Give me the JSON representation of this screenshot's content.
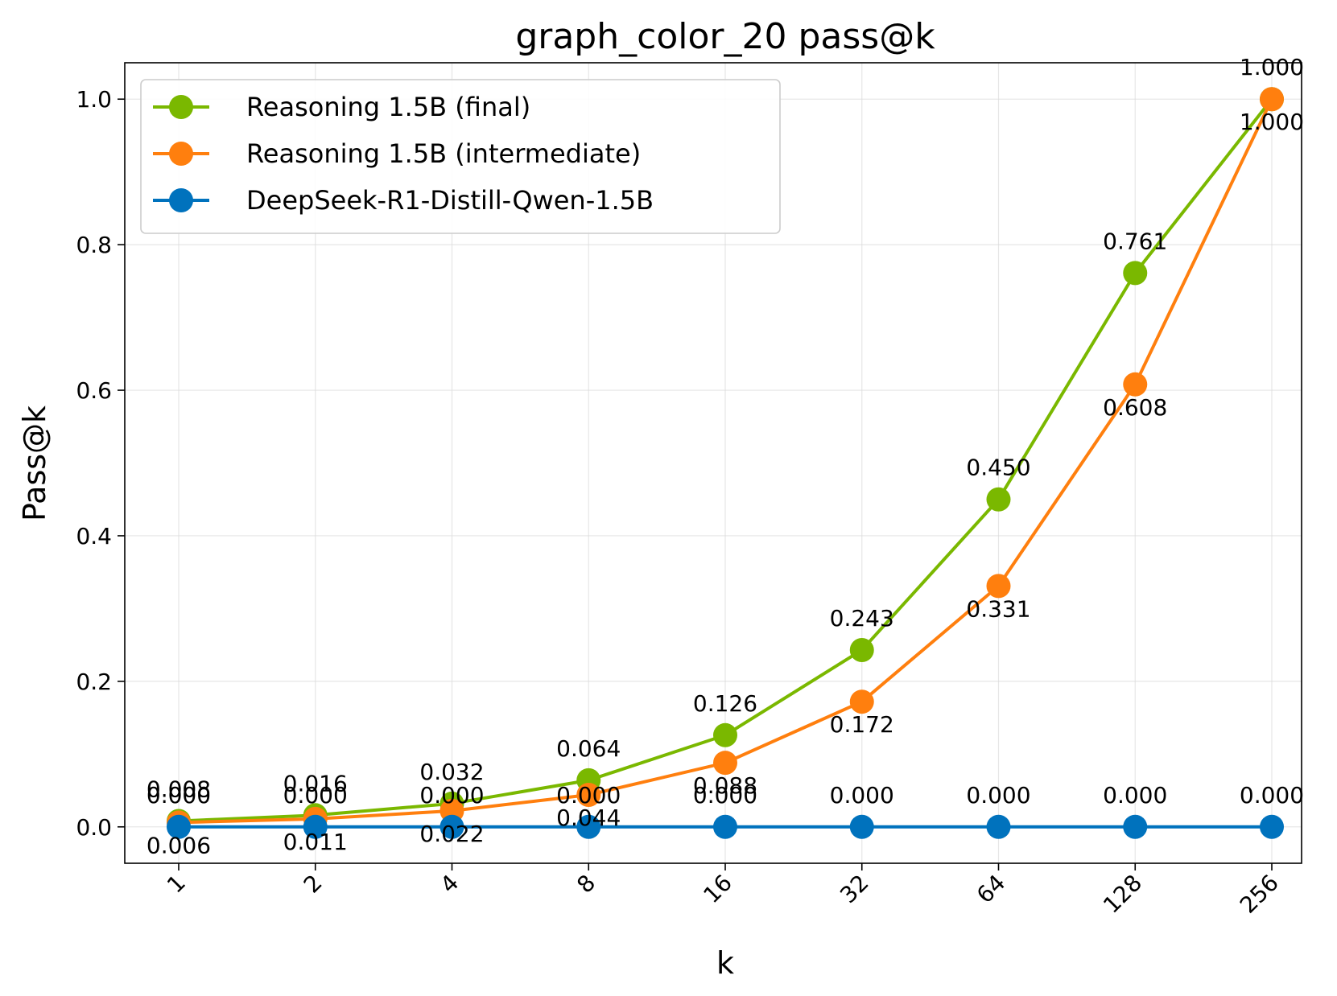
{
  "chart_data": {
    "type": "line",
    "title": "graph_color_20 pass@k",
    "xlabel": "k",
    "ylabel": "Pass@k",
    "categories": [
      "1",
      "2",
      "4",
      "8",
      "16",
      "32",
      "64",
      "128",
      "256"
    ],
    "yticks": [
      "0.0",
      "0.2",
      "0.4",
      "0.6",
      "0.8",
      "1.0"
    ],
    "ylim": [
      -0.05,
      1.05
    ],
    "grid": true,
    "legend_position": "upper-left",
    "series": [
      {
        "name": "Reasoning 1.5B (final)",
        "color": "#7ab800",
        "label_side": "above",
        "values": [
          0.008,
          0.016,
          0.032,
          0.064,
          0.126,
          0.243,
          0.45,
          0.761,
          1.0
        ],
        "labels": [
          "0.008",
          "0.016",
          "0.032",
          "0.064",
          "0.126",
          "0.243",
          "0.450",
          "0.761",
          "1.000"
        ]
      },
      {
        "name": "Reasoning 1.5B (intermediate)",
        "color": "#ff7f0e",
        "label_side": "below",
        "values": [
          0.006,
          0.011,
          0.022,
          0.044,
          0.088,
          0.172,
          0.331,
          0.608,
          1.0
        ],
        "labels": [
          "0.006",
          "0.011",
          "0.022",
          "0.044",
          "0.088",
          "0.172",
          "0.331",
          "0.608",
          "1.000"
        ]
      },
      {
        "name": "DeepSeek-R1-Distill-Qwen-1.5B",
        "color": "#0072bd",
        "label_side": "above",
        "values": [
          0.0,
          0.0,
          0.0,
          0.0,
          0.0,
          0.0,
          0.0,
          0.0,
          0.0
        ],
        "labels": [
          "0.000",
          "0.000",
          "0.000",
          "0.000",
          "0.000",
          "0.000",
          "0.000",
          "0.000",
          "0.000"
        ]
      }
    ]
  }
}
